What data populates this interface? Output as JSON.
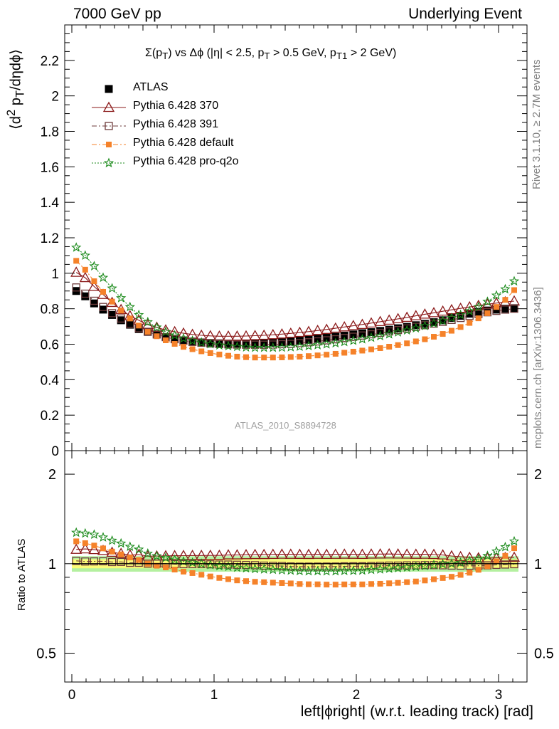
{
  "header": {
    "left": "7000 GeV pp",
    "right": "Underlying Event"
  },
  "side_labels": {
    "rivet": "Rivet 3.1.10, ≥ 2.7M events",
    "mcplots": "mcplots.cern.ch [arXiv:1306.3436]"
  },
  "plot_title": "Σ(pT) vs Δϕ (|η| < 2.5, pT > 0.5 GeV, pT1 > 2 GeV)",
  "analysis_label": "ATLAS_2010_S8894728",
  "colors": {
    "atlas": "#000000",
    "p370": "#8b1a1a",
    "p391": "#6e3b3b",
    "pdefault": "#f5822a",
    "pq2o": "#1a8a1a",
    "band_inner": "#fcfc78",
    "band_outer": "#b4f0a0"
  },
  "chart_data": [
    {
      "type": "scatter",
      "panel": "main",
      "ylabel": "⟨d2pT/dηdϕ⟩",
      "xlabel": "left|ϕright| (w.r.t. leading track) [rad]",
      "xlim": [
        -0.05,
        3.2
      ],
      "ylim": [
        0,
        2.4
      ],
      "yticks": [
        0,
        0.2,
        0.4,
        0.6,
        0.8,
        1,
        1.2,
        1.4,
        1.6,
        1.8,
        2,
        2.2
      ],
      "ytick_labels": [
        "0",
        "0.2",
        "0.4",
        "0.6",
        "0.8",
        "1",
        "1.2",
        "1.4",
        "1.6",
        "1.8",
        "2",
        "2.2"
      ],
      "xticks": [
        0,
        1,
        2,
        3
      ],
      "xtick_labels": [
        "0",
        "1",
        "2",
        "3"
      ],
      "legend": "top-left",
      "x": [
        0.031,
        0.094,
        0.157,
        0.22,
        0.283,
        0.346,
        0.409,
        0.471,
        0.534,
        0.597,
        0.66,
        0.723,
        0.785,
        0.848,
        0.911,
        0.974,
        1.037,
        1.1,
        1.162,
        1.225,
        1.288,
        1.351,
        1.414,
        1.477,
        1.539,
        1.602,
        1.665,
        1.728,
        1.791,
        1.854,
        1.916,
        1.979,
        2.042,
        2.105,
        2.168,
        2.231,
        2.293,
        2.356,
        2.419,
        2.482,
        2.545,
        2.608,
        2.67,
        2.733,
        2.796,
        2.859,
        2.922,
        2.985,
        3.047,
        3.11
      ],
      "series": [
        {
          "name": "ATLAS",
          "key": "atlas",
          "marker": "filled-square",
          "values": [
            0.9,
            0.87,
            0.83,
            0.795,
            0.765,
            0.735,
            0.71,
            0.685,
            0.67,
            0.655,
            0.64,
            0.63,
            0.622,
            0.615,
            0.61,
            0.607,
            0.605,
            0.603,
            0.603,
            0.603,
            0.604,
            0.606,
            0.608,
            0.611,
            0.615,
            0.62,
            0.625,
            0.63,
            0.636,
            0.642,
            0.648,
            0.655,
            0.662,
            0.668,
            0.675,
            0.682,
            0.69,
            0.698,
            0.707,
            0.715,
            0.724,
            0.735,
            0.748,
            0.76,
            0.772,
            0.782,
            0.79,
            0.795,
            0.8,
            0.803
          ]
        },
        {
          "name": "Pythia 6.428 370",
          "key": "p370",
          "marker": "open-triangle",
          "line": "solid",
          "values": [
            1.005,
            0.975,
            0.925,
            0.88,
            0.835,
            0.795,
            0.76,
            0.735,
            0.71,
            0.695,
            0.68,
            0.67,
            0.662,
            0.655,
            0.65,
            0.647,
            0.645,
            0.645,
            0.645,
            0.646,
            0.648,
            0.65,
            0.653,
            0.657,
            0.661,
            0.666,
            0.671,
            0.677,
            0.683,
            0.69,
            0.697,
            0.704,
            0.711,
            0.719,
            0.727,
            0.735,
            0.743,
            0.751,
            0.76,
            0.769,
            0.777,
            0.786,
            0.794,
            0.802,
            0.81,
            0.818,
            0.825,
            0.832,
            0.838,
            0.843
          ]
        },
        {
          "name": "Pythia 6.428 391",
          "key": "p391",
          "marker": "open-square",
          "line": "dashdot",
          "values": [
            0.92,
            0.885,
            0.845,
            0.81,
            0.775,
            0.745,
            0.715,
            0.69,
            0.67,
            0.655,
            0.64,
            0.628,
            0.62,
            0.613,
            0.608,
            0.604,
            0.601,
            0.599,
            0.598,
            0.597,
            0.597,
            0.597,
            0.598,
            0.6,
            0.602,
            0.606,
            0.611,
            0.616,
            0.622,
            0.628,
            0.635,
            0.642,
            0.649,
            0.656,
            0.664,
            0.672,
            0.68,
            0.689,
            0.698,
            0.707,
            0.716,
            0.726,
            0.737,
            0.748,
            0.759,
            0.77,
            0.78,
            0.788,
            0.795,
            0.8
          ]
        },
        {
          "name": "Pythia 6.428 default",
          "key": "pdefault",
          "marker": "filled-square-small",
          "line": "dashdot",
          "values": [
            1.07,
            1.02,
            0.955,
            0.895,
            0.84,
            0.79,
            0.745,
            0.705,
            0.67,
            0.645,
            0.622,
            0.602,
            0.585,
            0.572,
            0.56,
            0.55,
            0.542,
            0.535,
            0.53,
            0.527,
            0.525,
            0.525,
            0.525,
            0.526,
            0.528,
            0.53,
            0.533,
            0.537,
            0.541,
            0.546,
            0.552,
            0.558,
            0.564,
            0.571,
            0.578,
            0.586,
            0.595,
            0.605,
            0.616,
            0.628,
            0.642,
            0.658,
            0.676,
            0.697,
            0.72,
            0.746,
            0.775,
            0.81,
            0.85,
            0.905
          ]
        },
        {
          "name": "Pythia 6.428 pro-q2o",
          "key": "pq2o",
          "marker": "star",
          "line": "dotted",
          "values": [
            1.145,
            1.1,
            1.04,
            0.975,
            0.915,
            0.86,
            0.81,
            0.765,
            0.725,
            0.695,
            0.67,
            0.65,
            0.633,
            0.62,
            0.61,
            0.601,
            0.594,
            0.589,
            0.585,
            0.582,
            0.58,
            0.58,
            0.58,
            0.581,
            0.583,
            0.586,
            0.59,
            0.595,
            0.6,
            0.606,
            0.613,
            0.62,
            0.628,
            0.637,
            0.646,
            0.656,
            0.667,
            0.678,
            0.69,
            0.703,
            0.717,
            0.732,
            0.748,
            0.766,
            0.787,
            0.81,
            0.84,
            0.875,
            0.91,
            0.955
          ]
        }
      ]
    },
    {
      "type": "scatter",
      "panel": "ratio",
      "ylabel": "Ratio to ATLAS",
      "yscale": "log",
      "xlim": [
        -0.05,
        3.2
      ],
      "ylim": [
        0.4,
        2.4
      ],
      "yticks": [
        0.5,
        1,
        2
      ],
      "ytick_labels": [
        "0.5",
        "1",
        "2"
      ],
      "xticks": [
        0,
        1,
        2,
        3
      ],
      "xtick_labels": [
        "0",
        "1",
        "2",
        "3"
      ]
    }
  ]
}
